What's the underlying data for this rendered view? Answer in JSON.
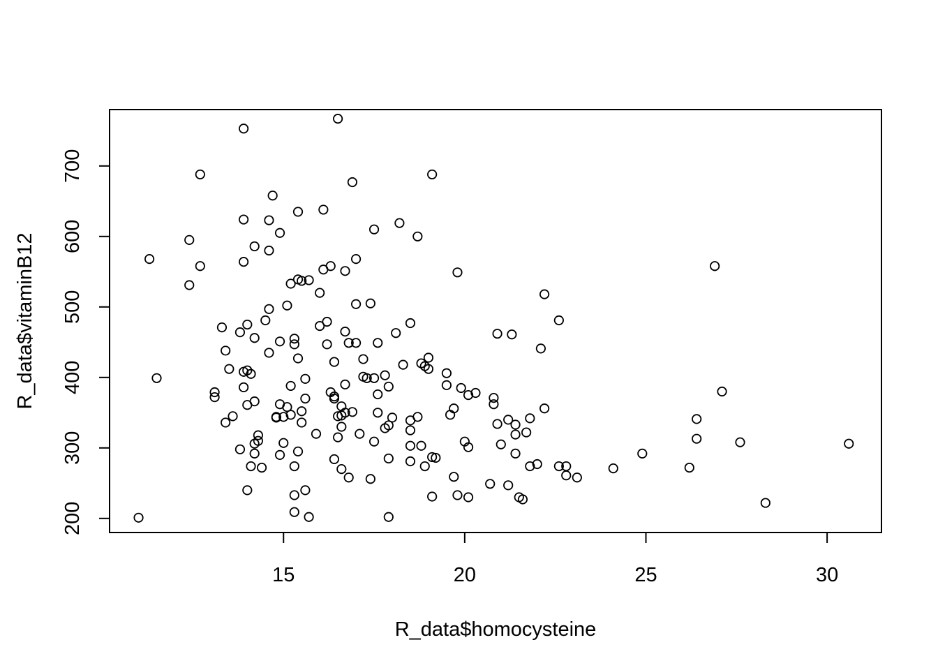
{
  "chart_data": {
    "type": "scatter",
    "xlabel": "R_data$homocysteine",
    "ylabel": "R_data$vitaminB12",
    "xlim": [
      10.2,
      31.5
    ],
    "ylim": [
      180,
      780
    ],
    "xticks": [
      15,
      20,
      25,
      30
    ],
    "yticks": [
      200,
      300,
      400,
      500,
      600,
      700
    ],
    "marker": "open-circle",
    "color": "#000000",
    "grid": false,
    "points": [
      [
        11.0,
        201
      ],
      [
        11.3,
        568
      ],
      [
        11.5,
        399
      ],
      [
        12.4,
        595
      ],
      [
        12.4,
        531
      ],
      [
        12.7,
        688
      ],
      [
        12.7,
        558
      ],
      [
        13.1,
        379
      ],
      [
        13.1,
        372
      ],
      [
        13.3,
        471
      ],
      [
        13.4,
        336
      ],
      [
        13.4,
        438
      ],
      [
        13.5,
        412
      ],
      [
        13.6,
        345
      ],
      [
        13.8,
        464
      ],
      [
        13.8,
        298
      ],
      [
        13.9,
        753
      ],
      [
        13.9,
        624
      ],
      [
        13.9,
        564
      ],
      [
        13.9,
        408
      ],
      [
        13.9,
        386
      ],
      [
        14.0,
        475
      ],
      [
        14.0,
        410
      ],
      [
        14.0,
        361
      ],
      [
        14.0,
        240
      ],
      [
        14.1,
        405
      ],
      [
        14.1,
        274
      ],
      [
        14.2,
        586
      ],
      [
        14.2,
        456
      ],
      [
        14.2,
        366
      ],
      [
        14.2,
        306
      ],
      [
        14.2,
        292
      ],
      [
        14.3,
        318
      ],
      [
        14.3,
        310
      ],
      [
        14.4,
        272
      ],
      [
        14.5,
        481
      ],
      [
        14.6,
        623
      ],
      [
        14.6,
        580
      ],
      [
        14.6,
        497
      ],
      [
        14.6,
        435
      ],
      [
        14.7,
        658
      ],
      [
        14.8,
        343
      ],
      [
        14.8,
        344
      ],
      [
        14.9,
        605
      ],
      [
        14.9,
        451
      ],
      [
        14.9,
        362
      ],
      [
        14.9,
        290
      ],
      [
        15.0,
        307
      ],
      [
        15.0,
        344
      ],
      [
        15.1,
        502
      ],
      [
        15.1,
        358
      ],
      [
        15.2,
        533
      ],
      [
        15.2,
        388
      ],
      [
        15.2,
        347
      ],
      [
        15.3,
        455
      ],
      [
        15.3,
        447
      ],
      [
        15.3,
        274
      ],
      [
        15.3,
        233
      ],
      [
        15.3,
        209
      ],
      [
        15.4,
        635
      ],
      [
        15.4,
        539
      ],
      [
        15.4,
        427
      ],
      [
        15.4,
        295
      ],
      [
        15.5,
        537
      ],
      [
        15.5,
        352
      ],
      [
        15.5,
        336
      ],
      [
        15.6,
        398
      ],
      [
        15.6,
        370
      ],
      [
        15.6,
        240
      ],
      [
        15.7,
        538
      ],
      [
        15.7,
        202
      ],
      [
        15.9,
        320
      ],
      [
        16.0,
        520
      ],
      [
        16.0,
        473
      ],
      [
        16.1,
        638
      ],
      [
        16.1,
        553
      ],
      [
        16.2,
        479
      ],
      [
        16.2,
        447
      ],
      [
        16.3,
        558
      ],
      [
        16.3,
        379
      ],
      [
        16.4,
        422
      ],
      [
        16.4,
        373
      ],
      [
        16.4,
        370
      ],
      [
        16.4,
        284
      ],
      [
        16.5,
        767
      ],
      [
        16.5,
        345
      ],
      [
        16.5,
        315
      ],
      [
        16.6,
        359
      ],
      [
        16.6,
        346
      ],
      [
        16.6,
        330
      ],
      [
        16.6,
        270
      ],
      [
        16.7,
        551
      ],
      [
        16.7,
        465
      ],
      [
        16.7,
        390
      ],
      [
        16.7,
        350
      ],
      [
        16.8,
        449
      ],
      [
        16.8,
        258
      ],
      [
        16.9,
        677
      ],
      [
        16.9,
        351
      ],
      [
        17.0,
        568
      ],
      [
        17.0,
        504
      ],
      [
        17.0,
        449
      ],
      [
        17.1,
        320
      ],
      [
        17.2,
        426
      ],
      [
        17.2,
        401
      ],
      [
        17.3,
        399
      ],
      [
        17.4,
        505
      ],
      [
        17.4,
        256
      ],
      [
        17.5,
        610
      ],
      [
        17.5,
        399
      ],
      [
        17.5,
        309
      ],
      [
        17.6,
        449
      ],
      [
        17.6,
        376
      ],
      [
        17.6,
        350
      ],
      [
        17.8,
        403
      ],
      [
        17.8,
        328
      ],
      [
        17.9,
        387
      ],
      [
        17.9,
        332
      ],
      [
        17.9,
        285
      ],
      [
        17.9,
        202
      ],
      [
        18.0,
        343
      ],
      [
        18.1,
        463
      ],
      [
        18.2,
        619
      ],
      [
        18.3,
        418
      ],
      [
        18.5,
        477
      ],
      [
        18.5,
        339
      ],
      [
        18.5,
        325
      ],
      [
        18.5,
        303
      ],
      [
        18.5,
        281
      ],
      [
        18.7,
        600
      ],
      [
        18.7,
        344
      ],
      [
        18.8,
        420
      ],
      [
        18.8,
        303
      ],
      [
        18.9,
        416
      ],
      [
        18.9,
        274
      ],
      [
        19.0,
        428
      ],
      [
        19.0,
        412
      ],
      [
        19.1,
        688
      ],
      [
        19.1,
        287
      ],
      [
        19.1,
        231
      ],
      [
        19.2,
        286
      ],
      [
        19.5,
        406
      ],
      [
        19.5,
        389
      ],
      [
        19.6,
        347
      ],
      [
        19.7,
        356
      ],
      [
        19.7,
        259
      ],
      [
        19.8,
        549
      ],
      [
        19.8,
        233
      ],
      [
        19.9,
        385
      ],
      [
        20.0,
        309
      ],
      [
        20.1,
        375
      ],
      [
        20.1,
        301
      ],
      [
        20.1,
        230
      ],
      [
        20.3,
        378
      ],
      [
        20.7,
        249
      ],
      [
        20.8,
        371
      ],
      [
        20.8,
        362
      ],
      [
        20.9,
        462
      ],
      [
        20.9,
        334
      ],
      [
        21.0,
        305
      ],
      [
        21.2,
        340
      ],
      [
        21.2,
        247
      ],
      [
        21.3,
        461
      ],
      [
        21.4,
        333
      ],
      [
        21.4,
        319
      ],
      [
        21.4,
        292
      ],
      [
        21.5,
        230
      ],
      [
        21.6,
        227
      ],
      [
        21.7,
        322
      ],
      [
        21.8,
        342
      ],
      [
        21.8,
        274
      ],
      [
        22.0,
        277
      ],
      [
        22.1,
        441
      ],
      [
        22.2,
        518
      ],
      [
        22.2,
        356
      ],
      [
        22.6,
        481
      ],
      [
        22.6,
        274
      ],
      [
        22.8,
        274
      ],
      [
        22.8,
        261
      ],
      [
        23.1,
        258
      ],
      [
        24.1,
        271
      ],
      [
        24.9,
        292
      ],
      [
        26.2,
        272
      ],
      [
        26.4,
        341
      ],
      [
        26.4,
        313
      ],
      [
        26.9,
        558
      ],
      [
        27.1,
        380
      ],
      [
        27.6,
        308
      ],
      [
        28.3,
        222
      ],
      [
        30.6,
        306
      ]
    ]
  }
}
